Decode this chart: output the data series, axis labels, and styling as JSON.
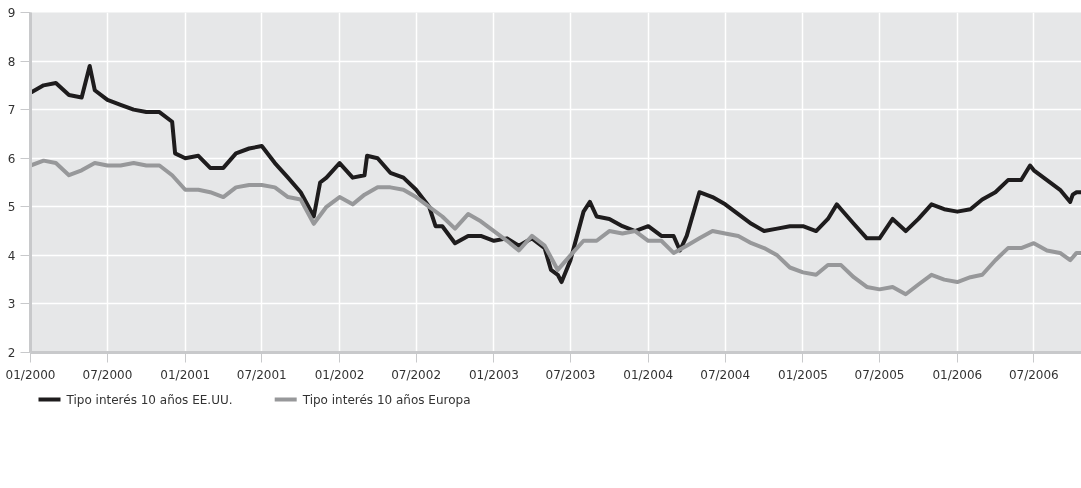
{
  "chart_data": {
    "type": "line",
    "xlim": [
      "2000-01-01",
      "2006-11-12"
    ],
    "xticks": [
      {
        "value": "2000-01",
        "label": "01/2000"
      },
      {
        "value": "2000-07",
        "label": "07/2000"
      },
      {
        "value": "2001-01",
        "label": "01/2001"
      },
      {
        "value": "2001-07",
        "label": "07/2001"
      },
      {
        "value": "2002-01",
        "label": "01/2002"
      },
      {
        "value": "2002-07",
        "label": "07/2002"
      },
      {
        "value": "2003-01",
        "label": "01/2003"
      },
      {
        "value": "2003-07",
        "label": "07/2003"
      },
      {
        "value": "2004-01",
        "label": "01/2004"
      },
      {
        "value": "2004-07",
        "label": "07/2004"
      },
      {
        "value": "2005-01",
        "label": "01/2005"
      },
      {
        "value": "2005-07",
        "label": "07/2005"
      },
      {
        "value": "2006-01",
        "label": "01/2006"
      },
      {
        "value": "2006-07",
        "label": "07/2006"
      }
    ],
    "ylim": [
      2,
      9
    ],
    "yticks": [
      2,
      3,
      4,
      5,
      6,
      7,
      8,
      9
    ],
    "grid": true,
    "legend": "bottom",
    "marker": "none",
    "line_style": "solid",
    "series": [
      {
        "name": "Tipo interés 10 años EE.UU.",
        "color": "#1e1c1d",
        "x": [
          "2000-01-01",
          "2000-02-01",
          "2000-03-01",
          "2000-04-01",
          "2000-05-01",
          "2000-05-20",
          "2000-06-01",
          "2000-07-01",
          "2000-08-01",
          "2000-09-01",
          "2000-10-01",
          "2000-11-01",
          "2000-12-01",
          "2000-12-08",
          "2001-01-01",
          "2001-02-01",
          "2001-03-01",
          "2001-04-01",
          "2001-05-01",
          "2001-06-01",
          "2001-07-01",
          "2001-08-01",
          "2001-09-01",
          "2001-10-01",
          "2001-11-01",
          "2001-11-16",
          "2001-12-01",
          "2002-01-01",
          "2002-02-01",
          "2002-03-01",
          "2002-03-07",
          "2002-04-01",
          "2002-05-01",
          "2002-06-01",
          "2002-07-01",
          "2002-08-01",
          "2002-08-16",
          "2002-09-01",
          "2002-10-01",
          "2002-11-01",
          "2002-12-01",
          "2003-01-01",
          "2003-02-01",
          "2003-03-01",
          "2003-04-01",
          "2003-05-01",
          "2003-05-16",
          "2003-06-01",
          "2003-06-10",
          "2003-07-01",
          "2003-08-01",
          "2003-08-16",
          "2003-09-01",
          "2003-10-01",
          "2003-11-01",
          "2003-12-01",
          "2004-01-01",
          "2004-02-01",
          "2004-03-01",
          "2004-03-16",
          "2004-04-01",
          "2004-05-01",
          "2004-06-01",
          "2004-07-01",
          "2004-08-01",
          "2004-09-01",
          "2004-10-01",
          "2004-11-01",
          "2004-12-01",
          "2005-01-01",
          "2005-02-01",
          "2005-03-01",
          "2005-03-22",
          "2005-04-01",
          "2005-05-01",
          "2005-06-01",
          "2005-07-01",
          "2005-08-01",
          "2005-09-01",
          "2005-10-01",
          "2005-11-01",
          "2005-12-01",
          "2006-01-01",
          "2006-02-01",
          "2006-03-01",
          "2006-04-01",
          "2006-05-01",
          "2006-06-01",
          "2006-06-22",
          "2006-07-01",
          "2006-08-01",
          "2006-09-01",
          "2006-09-25",
          "2006-10-01",
          "2006-10-10",
          "2006-11-10"
        ],
        "values": [
          7.35,
          7.5,
          7.55,
          7.3,
          7.25,
          7.9,
          7.4,
          7.2,
          7.1,
          7.0,
          6.95,
          6.95,
          6.75,
          6.1,
          6.0,
          6.05,
          5.8,
          5.8,
          6.1,
          6.2,
          6.25,
          5.9,
          5.6,
          5.3,
          4.8,
          5.5,
          5.6,
          5.9,
          5.6,
          5.65,
          6.05,
          6.0,
          5.7,
          5.6,
          5.35,
          5.0,
          4.6,
          4.6,
          4.25,
          4.4,
          4.4,
          4.3,
          4.35,
          4.2,
          4.35,
          4.15,
          3.7,
          3.6,
          3.45,
          3.9,
          4.9,
          5.1,
          4.8,
          4.75,
          4.6,
          4.5,
          4.6,
          4.4,
          4.4,
          4.1,
          4.4,
          5.3,
          5.2,
          5.05,
          4.85,
          4.65,
          4.5,
          4.55,
          4.6,
          4.6,
          4.5,
          4.75,
          5.05,
          4.95,
          4.65,
          4.35,
          4.35,
          4.75,
          4.5,
          4.75,
          5.05,
          4.95,
          4.9,
          4.95,
          5.15,
          5.3,
          5.55,
          5.55,
          5.85,
          5.75,
          5.55,
          5.35,
          5.1,
          5.25,
          5.3,
          5.3
        ]
      },
      {
        "name": "Tipo interés 10 años Europa",
        "color": "#97989a",
        "x": [
          "2000-01-01",
          "2000-02-01",
          "2000-03-01",
          "2000-04-01",
          "2000-05-01",
          "2000-06-01",
          "2000-07-01",
          "2000-08-01",
          "2000-09-01",
          "2000-10-01",
          "2000-11-01",
          "2000-12-01",
          "2001-01-01",
          "2001-02-01",
          "2001-03-01",
          "2001-04-01",
          "2001-05-01",
          "2001-06-01",
          "2001-07-01",
          "2001-08-01",
          "2001-09-01",
          "2001-10-01",
          "2001-11-01",
          "2001-12-01",
          "2002-01-01",
          "2002-02-01",
          "2002-03-01",
          "2002-04-01",
          "2002-05-01",
          "2002-06-01",
          "2002-07-01",
          "2002-08-01",
          "2002-09-01",
          "2002-10-01",
          "2002-11-01",
          "2002-12-01",
          "2003-01-01",
          "2003-02-01",
          "2003-03-01",
          "2003-04-01",
          "2003-05-01",
          "2003-06-01",
          "2003-07-01",
          "2003-08-01",
          "2003-09-01",
          "2003-10-01",
          "2003-11-01",
          "2003-12-01",
          "2004-01-01",
          "2004-02-01",
          "2004-03-01",
          "2004-04-01",
          "2004-05-01",
          "2004-06-01",
          "2004-07-01",
          "2004-08-01",
          "2004-09-01",
          "2004-10-01",
          "2004-11-01",
          "2004-12-01",
          "2005-01-01",
          "2005-02-01",
          "2005-03-01",
          "2005-04-01",
          "2005-05-01",
          "2005-06-01",
          "2005-07-01",
          "2005-08-01",
          "2005-09-01",
          "2005-10-01",
          "2005-11-01",
          "2005-12-01",
          "2006-01-01",
          "2006-02-01",
          "2006-03-01",
          "2006-04-01",
          "2006-05-01",
          "2006-06-01",
          "2006-07-01",
          "2006-08-01",
          "2006-09-01",
          "2006-09-25",
          "2006-10-10",
          "2006-11-10"
        ],
        "values": [
          5.85,
          5.95,
          5.9,
          5.65,
          5.75,
          5.9,
          5.85,
          5.85,
          5.9,
          5.85,
          5.85,
          5.65,
          5.35,
          5.35,
          5.3,
          5.2,
          5.4,
          5.45,
          5.45,
          5.4,
          5.2,
          5.15,
          4.65,
          5.0,
          5.2,
          5.05,
          5.25,
          5.4,
          5.4,
          5.35,
          5.2,
          5.0,
          4.8,
          4.55,
          4.85,
          4.7,
          4.5,
          4.3,
          4.1,
          4.4,
          4.2,
          3.7,
          4.0,
          4.3,
          4.3,
          4.5,
          4.45,
          4.5,
          4.3,
          4.3,
          4.05,
          4.2,
          4.35,
          4.5,
          4.45,
          4.4,
          4.25,
          4.15,
          4.0,
          3.75,
          3.65,
          3.6,
          3.8,
          3.8,
          3.55,
          3.35,
          3.3,
          3.35,
          3.2,
          3.4,
          3.6,
          3.5,
          3.45,
          3.55,
          3.6,
          3.9,
          4.15,
          4.15,
          4.25,
          4.1,
          4.05,
          3.9,
          4.05,
          4.05
        ]
      }
    ]
  }
}
